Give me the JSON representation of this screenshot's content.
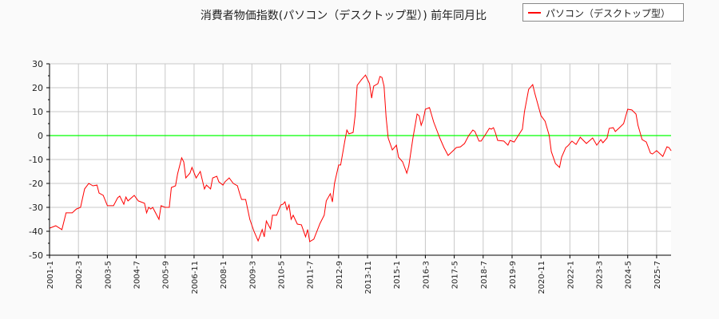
{
  "chart_data": {
    "type": "line",
    "title": "消費者物価指数(パソコン（デスクトップ型）) 前年同月比",
    "xlabel": "",
    "ylabel": "",
    "ylim": [
      -50,
      30
    ],
    "yticks": [
      30,
      20,
      10,
      0,
      -10,
      -20,
      -30,
      -40,
      -50
    ],
    "xlim": [
      "2001-01",
      "2026-02"
    ],
    "xticks": [
      "2001-1",
      "2002-3",
      "2003-5",
      "2004-7",
      "2005-9",
      "2006-11",
      "2008-1",
      "2009-3",
      "2010-5",
      "2011-7",
      "2012-9",
      "2013-11",
      "2015-1",
      "2016-3",
      "2017-5",
      "2018-7",
      "2019-9",
      "2020-11",
      "2022-1",
      "2023-3",
      "2024-5",
      "2025-7"
    ],
    "grid": true,
    "legend_position": "top-right",
    "reference_line": {
      "y": 0,
      "color": "#00ff00"
    },
    "series": [
      {
        "name": "パソコン（デスクトップ型）",
        "color": "#ff0000",
        "points": [
          [
            "2001-01",
            -38.7
          ],
          [
            "2001-04",
            -37.7
          ],
          [
            "2001-07",
            -39.3
          ],
          [
            "2001-09",
            -32.3
          ],
          [
            "2001-12",
            -32.3
          ],
          [
            "2002-02",
            -30.7
          ],
          [
            "2002-04",
            -30
          ],
          [
            "2002-06",
            -22.3
          ],
          [
            "2002-08",
            -20
          ],
          [
            "2002-10",
            -21
          ],
          [
            "2002-12",
            -20.7
          ],
          [
            "2003-01",
            -24
          ],
          [
            "2003-03",
            -25
          ],
          [
            "2003-05",
            -29.3
          ],
          [
            "2003-08",
            -29.3
          ],
          [
            "2003-10",
            -26
          ],
          [
            "2003-11",
            -25.3
          ],
          [
            "2004-01",
            -28.7
          ],
          [
            "2004-02",
            -25.7
          ],
          [
            "2004-03",
            -27.3
          ],
          [
            "2004-06",
            -25
          ],
          [
            "2004-08",
            -27.3
          ],
          [
            "2004-11",
            -28.3
          ],
          [
            "2004-12",
            -32.3
          ],
          [
            "2005-01",
            -30
          ],
          [
            "2005-02",
            -30.7
          ],
          [
            "2005-03",
            -30
          ],
          [
            "2005-04",
            -31.7
          ],
          [
            "2005-06",
            -35
          ],
          [
            "2005-07",
            -29.3
          ],
          [
            "2005-09",
            -30
          ],
          [
            "2005-11",
            -30
          ],
          [
            "2005-12",
            -21.7
          ],
          [
            "2006-02",
            -21
          ],
          [
            "2006-03",
            -16
          ],
          [
            "2006-05",
            -9.3
          ],
          [
            "2006-06",
            -11
          ],
          [
            "2006-07",
            -17.7
          ],
          [
            "2006-09",
            -15.7
          ],
          [
            "2006-10",
            -13.3
          ],
          [
            "2006-12",
            -17.7
          ],
          [
            "2007-02",
            -15
          ],
          [
            "2007-04",
            -22.3
          ],
          [
            "2007-05",
            -20.7
          ],
          [
            "2007-07",
            -22.3
          ],
          [
            "2007-08",
            -17.7
          ],
          [
            "2007-10",
            -17
          ],
          [
            "2007-11",
            -19.3
          ],
          [
            "2008-01",
            -20.7
          ],
          [
            "2008-02",
            -19.3
          ],
          [
            "2008-04",
            -17.7
          ],
          [
            "2008-06",
            -20
          ],
          [
            "2008-08",
            -21
          ],
          [
            "2008-09",
            -24
          ],
          [
            "2008-10",
            -26.7
          ],
          [
            "2008-12",
            -26.7
          ],
          [
            "2009-02",
            -35
          ],
          [
            "2009-04",
            -40
          ],
          [
            "2009-06",
            -44
          ],
          [
            "2009-08",
            -39.3
          ],
          [
            "2009-09",
            -42.3
          ],
          [
            "2009-10",
            -35.7
          ],
          [
            "2009-12",
            -39
          ],
          [
            "2010-01",
            -33.3
          ],
          [
            "2010-03",
            -33.3
          ],
          [
            "2010-05",
            -29
          ],
          [
            "2010-06",
            -28.7
          ],
          [
            "2010-07",
            -27.7
          ],
          [
            "2010-08",
            -31
          ],
          [
            "2010-09",
            -29
          ],
          [
            "2010-10",
            -35
          ],
          [
            "2010-11",
            -33.3
          ],
          [
            "2011-01",
            -37
          ],
          [
            "2011-03",
            -37.3
          ],
          [
            "2011-05",
            -42.3
          ],
          [
            "2011-06",
            -39.3
          ],
          [
            "2011-07",
            -44.3
          ],
          [
            "2011-09",
            -43.3
          ],
          [
            "2011-12",
            -36.7
          ],
          [
            "2012-02",
            -33.3
          ],
          [
            "2012-03",
            -27.3
          ],
          [
            "2012-05",
            -24.3
          ],
          [
            "2012-06",
            -27.7
          ],
          [
            "2012-07",
            -20
          ],
          [
            "2012-09",
            -12.3
          ],
          [
            "2012-10",
            -12.3
          ],
          [
            "2012-12",
            -2.3
          ],
          [
            "2013-01",
            2.3
          ],
          [
            "2013-02",
            0.7
          ],
          [
            "2013-04",
            1.3
          ],
          [
            "2013-05",
            8.3
          ],
          [
            "2013-06",
            21
          ],
          [
            "2013-08",
            23.3
          ],
          [
            "2013-10",
            25.3
          ],
          [
            "2013-12",
            21.7
          ],
          [
            "2014-01",
            15.7
          ],
          [
            "2014-02",
            20.7
          ],
          [
            "2014-04",
            21.7
          ],
          [
            "2014-05",
            24.7
          ],
          [
            "2014-06",
            24.3
          ],
          [
            "2014-07",
            20.7
          ],
          [
            "2014-08",
            7.7
          ],
          [
            "2014-09",
            -1
          ],
          [
            "2014-11",
            -6
          ],
          [
            "2015-01",
            -4
          ],
          [
            "2015-02",
            -9
          ],
          [
            "2015-04",
            -11
          ],
          [
            "2015-06",
            -15.7
          ],
          [
            "2015-07",
            -12.7
          ],
          [
            "2015-09",
            -1
          ],
          [
            "2015-11",
            9
          ],
          [
            "2015-12",
            8.3
          ],
          [
            "2016-01",
            4.3
          ],
          [
            "2016-02",
            6.7
          ],
          [
            "2016-03",
            11
          ],
          [
            "2016-05",
            11.7
          ],
          [
            "2016-07",
            5.7
          ],
          [
            "2016-10",
            -1
          ],
          [
            "2016-12",
            -5
          ],
          [
            "2017-02",
            -8.3
          ],
          [
            "2017-04",
            -6.7
          ],
          [
            "2017-06",
            -5
          ],
          [
            "2017-08",
            -4.7
          ],
          [
            "2017-10",
            -3.3
          ],
          [
            "2017-12",
            0
          ],
          [
            "2018-02",
            2.3
          ],
          [
            "2018-03",
            1.7
          ],
          [
            "2018-05",
            -2.3
          ],
          [
            "2018-06",
            -2.3
          ],
          [
            "2018-08",
            0.3
          ],
          [
            "2018-10",
            3
          ],
          [
            "2018-11",
            2.7
          ],
          [
            "2018-12",
            3.3
          ],
          [
            "2019-01",
            1
          ],
          [
            "2019-02",
            -2
          ],
          [
            "2019-05",
            -2.3
          ],
          [
            "2019-07",
            -4
          ],
          [
            "2019-08",
            -2
          ],
          [
            "2019-10",
            -2.7
          ],
          [
            "2019-12",
            0
          ],
          [
            "2020-02",
            2.7
          ],
          [
            "2020-03",
            10
          ],
          [
            "2020-05",
            19.3
          ],
          [
            "2020-07",
            21.3
          ],
          [
            "2020-08",
            17.7
          ],
          [
            "2020-11",
            8.3
          ],
          [
            "2021-01",
            6
          ],
          [
            "2021-03",
            0
          ],
          [
            "2021-04",
            -6.7
          ],
          [
            "2021-06",
            -11.7
          ],
          [
            "2021-08",
            -13.3
          ],
          [
            "2021-09",
            -9
          ],
          [
            "2021-11",
            -5
          ],
          [
            "2021-12",
            -4.3
          ],
          [
            "2022-02",
            -2.3
          ],
          [
            "2022-04",
            -3.7
          ],
          [
            "2022-06",
            -0.7
          ],
          [
            "2022-09",
            -3.3
          ],
          [
            "2022-12",
            -1
          ],
          [
            "2023-02",
            -4
          ],
          [
            "2023-04",
            -1.7
          ],
          [
            "2023-05",
            -3
          ],
          [
            "2023-07",
            -1
          ],
          [
            "2023-08",
            3
          ],
          [
            "2023-10",
            3.3
          ],
          [
            "2023-11",
            1.7
          ],
          [
            "2024-01",
            3.3
          ],
          [
            "2024-03",
            5
          ],
          [
            "2024-05",
            11
          ],
          [
            "2024-07",
            10.7
          ],
          [
            "2024-09",
            9
          ],
          [
            "2024-10",
            4.3
          ],
          [
            "2024-12",
            -1.7
          ],
          [
            "2025-02",
            -2.7
          ],
          [
            "2025-04",
            -7.3
          ],
          [
            "2025-05",
            -7.7
          ],
          [
            "2025-07",
            -6.3
          ],
          [
            "2025-10",
            -8.7
          ],
          [
            "2025-12",
            -4.7
          ],
          [
            "2026-01",
            -5
          ],
          [
            "2026-02",
            -6.3
          ]
        ]
      }
    ]
  }
}
